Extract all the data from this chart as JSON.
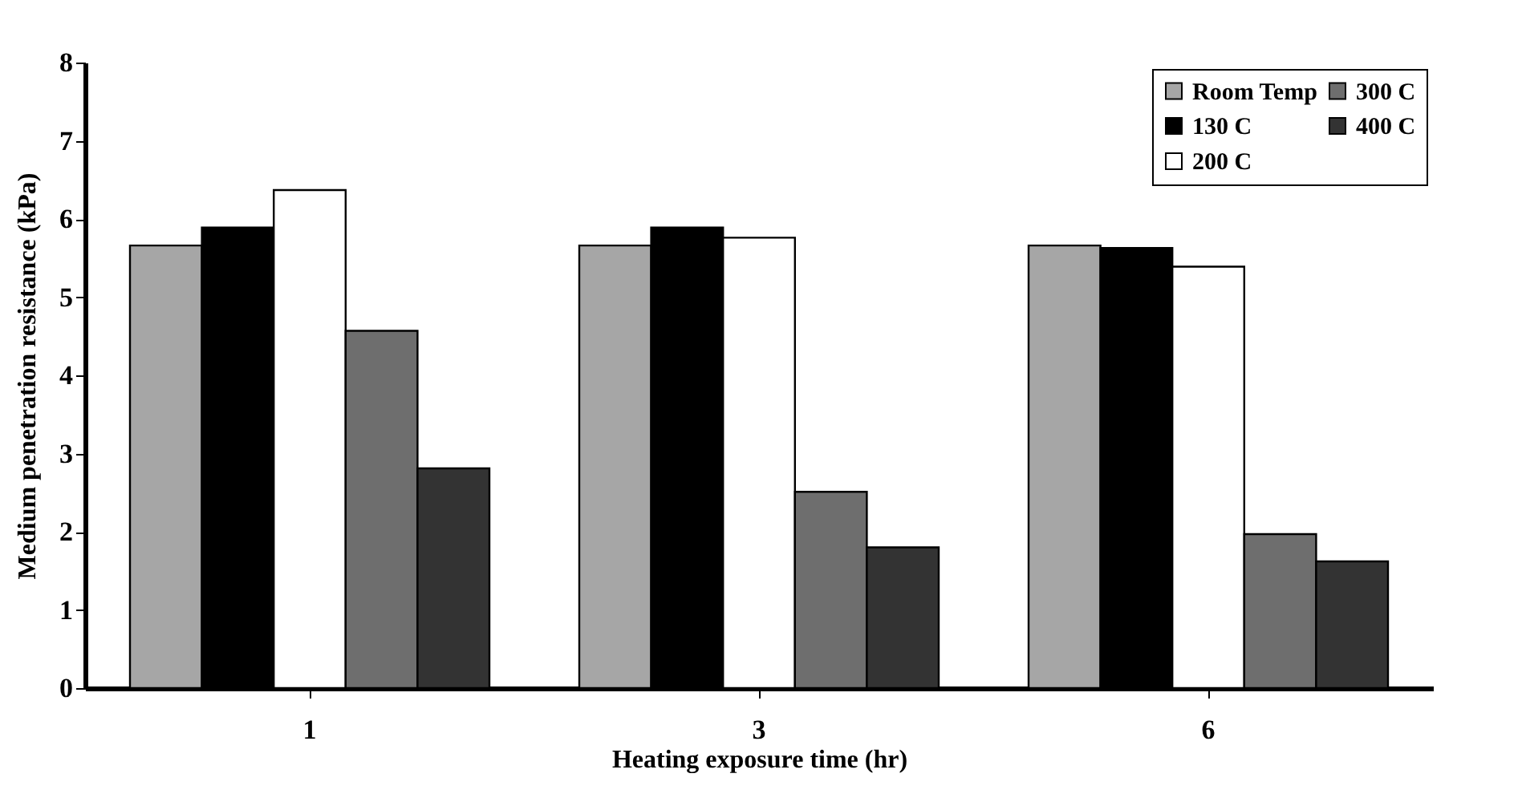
{
  "chart_data": {
    "type": "bar",
    "xlabel": "Heating exposure time (hr)",
    "ylabel": "Medium penetration resistance (kPa)",
    "categories": [
      "1",
      "3",
      "6"
    ],
    "series": [
      {
        "name": "Room Temp",
        "color": "#a6a6a6",
        "values": [
          5.66,
          5.66,
          5.66
        ]
      },
      {
        "name": "130 C",
        "color": "#000000",
        "values": [
          5.89,
          5.89,
          5.63
        ]
      },
      {
        "name": "200 C",
        "color": "#ffffff",
        "values": [
          6.37,
          5.76,
          5.39
        ]
      },
      {
        "name": "300 C",
        "color": "#6e6e6e",
        "values": [
          4.57,
          2.51,
          1.97
        ]
      },
      {
        "name": "400 C",
        "color": "#333333",
        "values": [
          2.81,
          1.8,
          1.62
        ]
      }
    ],
    "ylim": [
      0,
      8
    ],
    "yticks": [
      0,
      1,
      2,
      3,
      4,
      5,
      6,
      7,
      8
    ],
    "grid": false,
    "legend": "top right"
  }
}
